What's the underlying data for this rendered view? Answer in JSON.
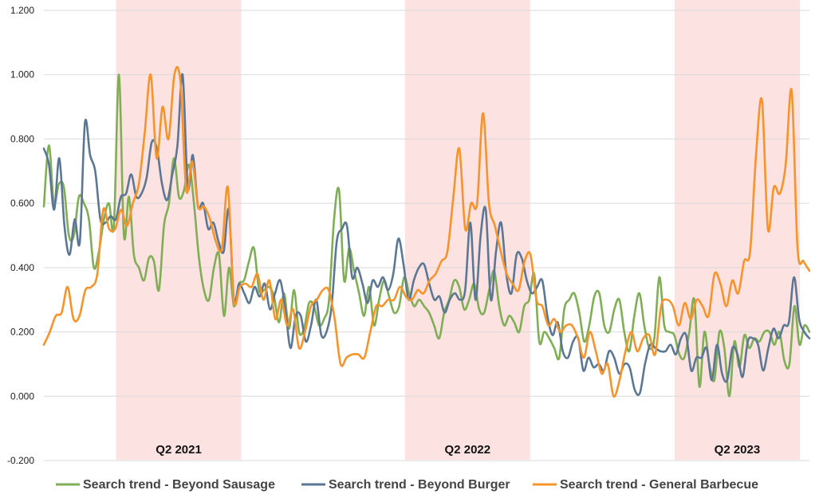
{
  "chart_data": {
    "type": "line",
    "title": "",
    "xlabel": "",
    "ylabel": "",
    "ylim": [
      -0.2,
      1.2
    ],
    "y_ticks": [
      "1.200",
      "1.000",
      "0.800",
      "0.600",
      "0.400",
      "0.200",
      "0.000",
      "-0.200"
    ],
    "y_tick_values": [
      1.2,
      1.0,
      0.8,
      0.6,
      0.4,
      0.2,
      0.0,
      -0.2
    ],
    "x_range": [
      0,
      159
    ],
    "grid": true,
    "legend_position": "bottom",
    "highlight_bands": [
      {
        "label": "Q2 2021",
        "start": 15,
        "end": 41,
        "color": "#fde2e2"
      },
      {
        "label": "Q2 2022",
        "start": 75,
        "end": 101,
        "color": "#fde2e2"
      },
      {
        "label": "Q2 2023",
        "start": 131,
        "end": 157,
        "color": "#fde2e2"
      }
    ],
    "series": [
      {
        "name": "Search trend - Beyond Sausage",
        "color": "#7fae55",
        "values": [
          0.59,
          0.78,
          0.6,
          0.66,
          0.65,
          0.5,
          0.5,
          0.62,
          0.6,
          0.55,
          0.4,
          0.45,
          0.55,
          0.6,
          0.53,
          1.0,
          0.5,
          0.62,
          0.44,
          0.4,
          0.36,
          0.43,
          0.42,
          0.33,
          0.53,
          0.6,
          0.74,
          0.62,
          0.64,
          0.72,
          0.6,
          0.43,
          0.33,
          0.3,
          0.4,
          0.44,
          0.25,
          0.4,
          0.28,
          0.35,
          0.36,
          0.42,
          0.46,
          0.33,
          0.33,
          0.34,
          0.31,
          0.23,
          0.32,
          0.21,
          0.33,
          0.2,
          0.21,
          0.29,
          0.28,
          0.22,
          0.24,
          0.3,
          0.55,
          0.64,
          0.36,
          0.46,
          0.39,
          0.32,
          0.25,
          0.34,
          0.22,
          0.3,
          0.36,
          0.31,
          0.26,
          0.28,
          0.37,
          0.32,
          0.28,
          0.3,
          0.28,
          0.26,
          0.22,
          0.18,
          0.26,
          0.3,
          0.36,
          0.34,
          0.27,
          0.3,
          0.35,
          0.27,
          0.26,
          0.33,
          0.39,
          0.28,
          0.22,
          0.25,
          0.23,
          0.2,
          0.28,
          0.3,
          0.38,
          0.17,
          0.2,
          0.18,
          0.15,
          0.12,
          0.27,
          0.3,
          0.32,
          0.26,
          0.17,
          0.22,
          0.31,
          0.32,
          0.22,
          0.2,
          0.27,
          0.3,
          0.2,
          0.14,
          0.25,
          0.32,
          0.22,
          0.15,
          0.18,
          0.37,
          0.22,
          0.2,
          0.19,
          0.13,
          0.12,
          0.2,
          0.3,
          0.03,
          0.2,
          0.1,
          0.05,
          0.2,
          0.15,
          0.0,
          0.17,
          0.09,
          0.19,
          0.15,
          0.18,
          0.17,
          0.2,
          0.2,
          0.16,
          0.2,
          0.11,
          0.1,
          0.28,
          0.16,
          0.22,
          0.2
        ]
      },
      {
        "name": "Search trend - Beyond Burger",
        "color": "#5b7793",
        "values": [
          0.77,
          0.72,
          0.58,
          0.74,
          0.53,
          0.44,
          0.55,
          0.48,
          0.85,
          0.75,
          0.7,
          0.55,
          0.54,
          0.56,
          0.55,
          0.62,
          0.63,
          0.69,
          0.62,
          0.63,
          0.68,
          0.79,
          0.77,
          0.66,
          0.61,
          0.69,
          0.78,
          1.0,
          0.65,
          0.75,
          0.59,
          0.6,
          0.52,
          0.54,
          0.48,
          0.45,
          0.58,
          0.3,
          0.35,
          0.32,
          0.29,
          0.34,
          0.31,
          0.35,
          0.27,
          0.32,
          0.36,
          0.27,
          0.15,
          0.25,
          0.25,
          0.17,
          0.22,
          0.3,
          0.19,
          0.2,
          0.28,
          0.48,
          0.52,
          0.53,
          0.37,
          0.4,
          0.35,
          0.29,
          0.36,
          0.34,
          0.37,
          0.33,
          0.38,
          0.49,
          0.41,
          0.3,
          0.36,
          0.4,
          0.41,
          0.35,
          0.3,
          0.31,
          0.26,
          0.3,
          0.32,
          0.3,
          0.33,
          0.54,
          0.3,
          0.5,
          0.58,
          0.3,
          0.45,
          0.54,
          0.38,
          0.32,
          0.44,
          0.43,
          0.36,
          0.32,
          0.34,
          0.36,
          0.25,
          0.19,
          0.23,
          0.14,
          0.12,
          0.17,
          0.18,
          0.08,
          0.12,
          0.09,
          0.1,
          0.08,
          0.14,
          0.12,
          0.07,
          0.1,
          0.09,
          0.02,
          0.01,
          0.1,
          0.16,
          0.15,
          0.14,
          0.14,
          0.16,
          0.13,
          0.18,
          0.19,
          0.08,
          0.12,
          0.12,
          0.15,
          0.05,
          0.16,
          0.07,
          0.05,
          0.15,
          0.13,
          0.06,
          0.17,
          0.18,
          0.16,
          0.08,
          0.15,
          0.21,
          0.18,
          0.22,
          0.23,
          0.37,
          0.24,
          0.2,
          0.18
        ]
      },
      {
        "name": "Search trend - General Barbecue",
        "color": "#f7932b",
        "values": [
          0.16,
          0.2,
          0.25,
          0.26,
          0.34,
          0.24,
          0.25,
          0.33,
          0.34,
          0.38,
          0.58,
          0.52,
          0.52,
          0.58,
          0.53,
          0.6,
          0.66,
          0.82,
          1.0,
          0.74,
          0.9,
          0.8,
          1.0,
          0.98,
          0.64,
          0.73,
          0.59,
          0.59,
          0.55,
          0.48,
          0.46,
          0.65,
          0.3,
          0.34,
          0.35,
          0.34,
          0.38,
          0.3,
          0.36,
          0.24,
          0.3,
          0.22,
          0.27,
          0.15,
          0.2,
          0.28,
          0.3,
          0.33,
          0.33,
          0.24,
          0.1,
          0.12,
          0.13,
          0.13,
          0.12,
          0.2,
          0.28,
          0.28,
          0.3,
          0.3,
          0.34,
          0.31,
          0.3,
          0.33,
          0.32,
          0.36,
          0.38,
          0.42,
          0.45,
          0.62,
          0.77,
          0.52,
          0.6,
          0.6,
          0.88,
          0.6,
          0.53,
          0.45,
          0.38,
          0.35,
          0.33,
          0.42,
          0.44,
          0.3,
          0.28,
          0.22,
          0.24,
          0.2,
          0.22,
          0.22,
          0.18,
          0.12,
          0.2,
          0.14,
          0.07,
          0.1,
          0.0,
          0.05,
          0.14,
          0.2,
          0.14,
          0.18,
          0.19,
          0.13,
          0.28,
          0.3,
          0.28,
          0.22,
          0.29,
          0.24,
          0.3,
          0.28,
          0.25,
          0.38,
          0.35,
          0.28,
          0.36,
          0.32,
          0.42,
          0.45,
          0.75,
          0.92,
          0.52,
          0.65,
          0.63,
          0.72,
          0.95,
          0.46,
          0.42,
          0.39
        ]
      }
    ]
  }
}
